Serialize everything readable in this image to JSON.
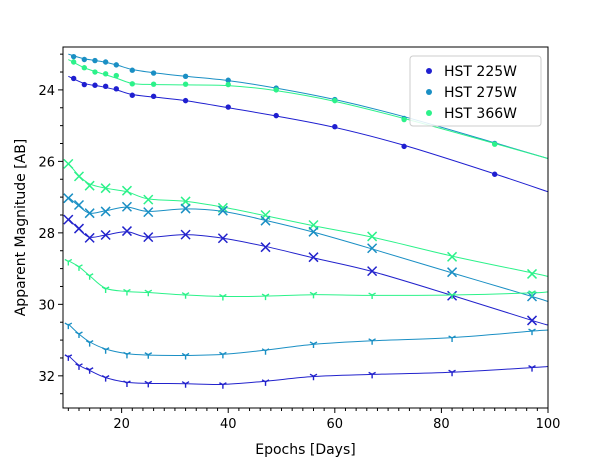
{
  "chart_data": {
    "type": "line",
    "xlabel": "Epochs [Days]",
    "ylabel": "Apparent Magnitude [AB]",
    "xlim": [
      9,
      100
    ],
    "ylim": [
      32.9,
      22.8
    ],
    "y_inverted": true,
    "x_ticks": [
      20,
      40,
      60,
      80,
      100
    ],
    "y_ticks": [
      24,
      26,
      28,
      30,
      32
    ],
    "x_minor_step": 2,
    "y_minor_step": 0.5,
    "grid": false,
    "legend_position": "top-right",
    "legend": [
      {
        "label": "HST 225W",
        "color": "#1f1fd0"
      },
      {
        "label": "HST 275W",
        "color": "#1a8fc4"
      },
      {
        "label": "HST 366W",
        "color": "#2cf28a"
      }
    ],
    "series": [
      {
        "name": "HST 225W",
        "color": "#1f1fd0",
        "marker": "dot",
        "points": [
          [
            11,
            23.68
          ],
          [
            13,
            23.85
          ],
          [
            15,
            23.87
          ],
          [
            17,
            23.9
          ],
          [
            19,
            23.97
          ],
          [
            22,
            24.15
          ],
          [
            26,
            24.18
          ],
          [
            32,
            24.3
          ],
          [
            40,
            24.48
          ],
          [
            49,
            24.72
          ],
          [
            60,
            25.03
          ],
          [
            73,
            25.58
          ],
          [
            90,
            26.36
          ]
        ],
        "fit": [
          [
            10,
            23.62
          ],
          [
            13,
            23.82
          ],
          [
            16,
            23.9
          ],
          [
            19,
            24.0
          ],
          [
            22,
            24.13
          ],
          [
            26,
            24.2
          ],
          [
            32,
            24.3
          ],
          [
            40,
            24.5
          ],
          [
            49,
            24.73
          ],
          [
            60,
            25.05
          ],
          [
            73,
            25.55
          ],
          [
            90,
            26.35
          ],
          [
            100,
            26.85
          ]
        ]
      },
      {
        "name": "HST 275W",
        "color": "#1a8fc4",
        "marker": "dot",
        "points": [
          [
            11,
            23.07
          ],
          [
            13,
            23.15
          ],
          [
            15,
            23.18
          ],
          [
            17,
            23.22
          ],
          [
            19,
            23.3
          ],
          [
            22,
            23.45
          ],
          [
            26,
            23.53
          ],
          [
            32,
            23.62
          ],
          [
            40,
            23.73
          ],
          [
            49,
            23.95
          ],
          [
            60,
            24.27
          ],
          [
            73,
            24.8
          ],
          [
            90,
            25.5
          ]
        ],
        "fit": [
          [
            10,
            23.0
          ],
          [
            13,
            23.13
          ],
          [
            16,
            23.2
          ],
          [
            19,
            23.3
          ],
          [
            22,
            23.43
          ],
          [
            26,
            23.52
          ],
          [
            32,
            23.62
          ],
          [
            40,
            23.74
          ],
          [
            49,
            23.95
          ],
          [
            60,
            24.27
          ],
          [
            73,
            24.75
          ],
          [
            90,
            25.48
          ],
          [
            100,
            25.92
          ]
        ]
      },
      {
        "name": "HST 366W",
        "color": "#2cf28a",
        "marker": "dot",
        "points": [
          [
            11,
            23.22
          ],
          [
            13,
            23.38
          ],
          [
            15,
            23.5
          ],
          [
            17,
            23.55
          ],
          [
            19,
            23.6
          ],
          [
            22,
            23.83
          ],
          [
            26,
            23.84
          ],
          [
            32,
            23.84
          ],
          [
            40,
            23.85
          ],
          [
            49,
            24.0
          ],
          [
            60,
            24.3
          ],
          [
            73,
            24.83
          ],
          [
            90,
            25.52
          ]
        ],
        "fit": [
          [
            10,
            23.15
          ],
          [
            13,
            23.38
          ],
          [
            16,
            23.53
          ],
          [
            19,
            23.67
          ],
          [
            22,
            23.82
          ],
          [
            26,
            23.85
          ],
          [
            32,
            23.86
          ],
          [
            40,
            23.88
          ],
          [
            49,
            24.02
          ],
          [
            60,
            24.32
          ],
          [
            73,
            24.8
          ],
          [
            90,
            25.5
          ],
          [
            100,
            25.92
          ]
        ]
      },
      {
        "name": "",
        "color": "#2cf28a",
        "marker": "x",
        "points": [
          [
            10,
            26.07
          ],
          [
            12,
            26.42
          ],
          [
            14,
            26.68
          ],
          [
            17,
            26.75
          ],
          [
            21,
            26.82
          ],
          [
            25,
            27.07
          ],
          [
            32,
            27.12
          ],
          [
            39,
            27.3
          ],
          [
            47,
            27.5
          ],
          [
            56,
            27.78
          ],
          [
            67,
            28.1
          ],
          [
            82,
            28.67
          ],
          [
            97,
            29.15
          ]
        ],
        "fit": [
          [
            10,
            26.05
          ],
          [
            12,
            26.4
          ],
          [
            14,
            26.63
          ],
          [
            17,
            26.75
          ],
          [
            21,
            26.85
          ],
          [
            25,
            27.05
          ],
          [
            32,
            27.12
          ],
          [
            39,
            27.28
          ],
          [
            47,
            27.52
          ],
          [
            56,
            27.8
          ],
          [
            67,
            28.12
          ],
          [
            82,
            28.65
          ],
          [
            97,
            29.12
          ],
          [
            100,
            29.22
          ]
        ]
      },
      {
        "name": "",
        "color": "#1a8fc4",
        "marker": "x",
        "points": [
          [
            10,
            27.03
          ],
          [
            12,
            27.22
          ],
          [
            14,
            27.45
          ],
          [
            17,
            27.4
          ],
          [
            21,
            27.27
          ],
          [
            25,
            27.42
          ],
          [
            32,
            27.32
          ],
          [
            39,
            27.38
          ],
          [
            47,
            27.66
          ],
          [
            56,
            27.97
          ],
          [
            67,
            28.43
          ],
          [
            82,
            29.1
          ],
          [
            97,
            29.78
          ]
        ],
        "fit": [
          [
            10,
            27.0
          ],
          [
            12,
            27.25
          ],
          [
            14,
            27.45
          ],
          [
            17,
            27.38
          ],
          [
            21,
            27.28
          ],
          [
            25,
            27.4
          ],
          [
            32,
            27.33
          ],
          [
            39,
            27.4
          ],
          [
            47,
            27.65
          ],
          [
            56,
            27.98
          ],
          [
            67,
            28.45
          ],
          [
            82,
            29.12
          ],
          [
            97,
            29.78
          ],
          [
            100,
            29.92
          ]
        ]
      },
      {
        "name": "",
        "color": "#2222cc",
        "marker": "x",
        "points": [
          [
            10,
            27.63
          ],
          [
            12,
            27.88
          ],
          [
            14,
            28.14
          ],
          [
            17,
            28.06
          ],
          [
            21,
            27.95
          ],
          [
            25,
            28.12
          ],
          [
            32,
            28.05
          ],
          [
            39,
            28.15
          ],
          [
            47,
            28.4
          ],
          [
            56,
            28.68
          ],
          [
            67,
            29.07
          ],
          [
            82,
            29.76
          ],
          [
            97,
            30.45
          ]
        ],
        "fit": [
          [
            10,
            27.6
          ],
          [
            12,
            27.9
          ],
          [
            14,
            28.12
          ],
          [
            17,
            28.06
          ],
          [
            21,
            27.97
          ],
          [
            25,
            28.12
          ],
          [
            32,
            28.05
          ],
          [
            39,
            28.15
          ],
          [
            47,
            28.38
          ],
          [
            56,
            28.7
          ],
          [
            67,
            29.08
          ],
          [
            82,
            29.75
          ],
          [
            97,
            30.45
          ],
          [
            100,
            30.58
          ]
        ]
      },
      {
        "name": "",
        "color": "#2cf28a",
        "marker": "tri",
        "points": [
          [
            10,
            28.8
          ],
          [
            12,
            28.95
          ],
          [
            14,
            29.2
          ],
          [
            17,
            29.57
          ],
          [
            21,
            29.64
          ],
          [
            25,
            29.66
          ],
          [
            32,
            29.73
          ],
          [
            39,
            29.78
          ],
          [
            47,
            29.77
          ],
          [
            56,
            29.72
          ],
          [
            67,
            29.74
          ],
          [
            82,
            29.74
          ],
          [
            97,
            29.68
          ]
        ],
        "fit": [
          [
            10,
            28.78
          ],
          [
            12,
            28.95
          ],
          [
            14,
            29.2
          ],
          [
            17,
            29.55
          ],
          [
            21,
            29.64
          ],
          [
            25,
            29.67
          ],
          [
            32,
            29.74
          ],
          [
            39,
            29.78
          ],
          [
            47,
            29.77
          ],
          [
            56,
            29.73
          ],
          [
            67,
            29.75
          ],
          [
            82,
            29.74
          ],
          [
            97,
            29.68
          ],
          [
            100,
            29.65
          ]
        ]
      },
      {
        "name": "",
        "color": "#1a8fc4",
        "marker": "tri",
        "points": [
          [
            10,
            30.58
          ],
          [
            12,
            30.83
          ],
          [
            14,
            31.07
          ],
          [
            17,
            31.27
          ],
          [
            21,
            31.4
          ],
          [
            25,
            31.41
          ],
          [
            32,
            31.43
          ],
          [
            39,
            31.4
          ],
          [
            47,
            31.3
          ],
          [
            56,
            31.11
          ],
          [
            67,
            31.02
          ],
          [
            82,
            30.94
          ],
          [
            97,
            30.75
          ]
        ],
        "fit": [
          [
            10,
            30.55
          ],
          [
            12,
            30.83
          ],
          [
            14,
            31.05
          ],
          [
            17,
            31.25
          ],
          [
            21,
            31.38
          ],
          [
            25,
            31.42
          ],
          [
            32,
            31.43
          ],
          [
            39,
            31.4
          ],
          [
            47,
            31.28
          ],
          [
            56,
            31.12
          ],
          [
            67,
            31.02
          ],
          [
            82,
            30.93
          ],
          [
            97,
            30.75
          ],
          [
            100,
            30.72
          ]
        ]
      },
      {
        "name": "",
        "color": "#2222cc",
        "marker": "tri",
        "points": [
          [
            10,
            31.47
          ],
          [
            12,
            31.72
          ],
          [
            14,
            31.83
          ],
          [
            17,
            32.05
          ],
          [
            21,
            32.2
          ],
          [
            25,
            32.21
          ],
          [
            32,
            32.22
          ],
          [
            39,
            32.25
          ],
          [
            47,
            32.17
          ],
          [
            56,
            32.01
          ],
          [
            67,
            31.96
          ],
          [
            82,
            31.9
          ],
          [
            97,
            31.77
          ]
        ],
        "fit": [
          [
            10,
            31.43
          ],
          [
            12,
            31.7
          ],
          [
            14,
            31.85
          ],
          [
            17,
            32.05
          ],
          [
            21,
            32.18
          ],
          [
            25,
            32.21
          ],
          [
            32,
            32.22
          ],
          [
            39,
            32.24
          ],
          [
            47,
            32.15
          ],
          [
            56,
            32.02
          ],
          [
            67,
            31.96
          ],
          [
            82,
            31.9
          ],
          [
            97,
            31.77
          ],
          [
            100,
            31.74
          ]
        ]
      }
    ]
  }
}
